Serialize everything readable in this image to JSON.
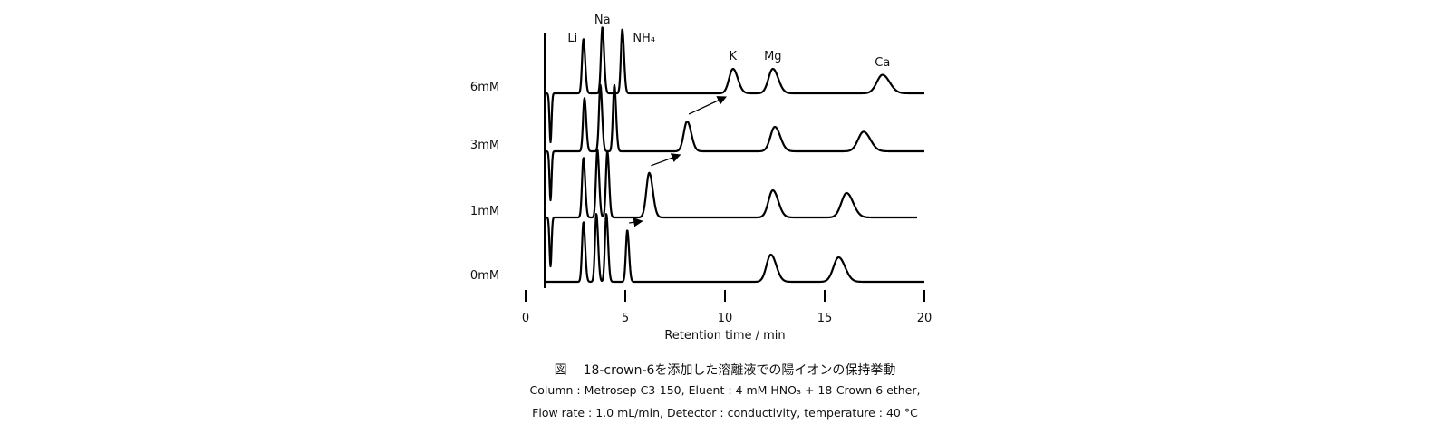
{
  "figure": {
    "caption_mark": "図",
    "caption_title": "18-crown-6を添加した溶離液での陽イオンの保持挙動",
    "conditions_line1": "Column : Metrosep C3-150, Eluent : 4 mM HNO₃ + 18-Crown 6 ether,",
    "conditions_line2": "Flow rate : 1.0 mL/min, Detector : conductivity, temperature : 40 °C"
  },
  "chart_data": {
    "type": "line",
    "title": "",
    "xlabel": "Retention time / min",
    "ylabel": "",
    "xlim": [
      0,
      20
    ],
    "xticks": [
      0,
      5,
      10,
      15,
      20
    ],
    "grid": false,
    "peak_labels": [
      "Li",
      "Na",
      "NH₄",
      "K",
      "Mg",
      "Ca"
    ],
    "series": [
      {
        "name": "6mM",
        "peaks": [
          {
            "ion": "Li",
            "rt": 2.9,
            "height": 1.0
          },
          {
            "ion": "Na",
            "rt": 3.85,
            "height": 1.22
          },
          {
            "ion": "NH₄",
            "rt": 4.85,
            "height": 1.18
          },
          {
            "ion": "K",
            "rt": 10.4,
            "height": 0.45
          },
          {
            "ion": "Mg",
            "rt": 12.4,
            "height": 0.45
          },
          {
            "ion": "Ca",
            "rt": 17.9,
            "height": 0.34
          }
        ]
      },
      {
        "name": "3mM",
        "peaks": [
          {
            "ion": "Li",
            "rt": 2.95,
            "height": 0.98
          },
          {
            "ion": "Na",
            "rt": 3.75,
            "height": 1.22
          },
          {
            "ion": "NH₄",
            "rt": 4.45,
            "height": 1.22
          },
          {
            "ion": "K",
            "rt": 8.1,
            "height": 0.55
          },
          {
            "ion": "Mg",
            "rt": 12.5,
            "height": 0.45
          },
          {
            "ion": "Ca",
            "rt": 16.95,
            "height": 0.36
          }
        ]
      },
      {
        "name": "1mM",
        "peaks": [
          {
            "ion": "Li",
            "rt": 2.9,
            "height": 1.1
          },
          {
            "ion": "Na",
            "rt": 3.6,
            "height": 1.25
          },
          {
            "ion": "NH₄",
            "rt": 4.1,
            "height": 1.22
          },
          {
            "ion": "K",
            "rt": 6.2,
            "height": 0.82
          },
          {
            "ion": "Mg",
            "rt": 12.4,
            "height": 0.5
          },
          {
            "ion": "Ca",
            "rt": 16.1,
            "height": 0.45
          }
        ]
      },
      {
        "name": "0mM",
        "peaks": [
          {
            "ion": "Li",
            "rt": 2.9,
            "height": 1.1
          },
          {
            "ion": "Na",
            "rt": 3.55,
            "height": 1.25
          },
          {
            "ion": "NH₄",
            "rt": 4.05,
            "height": 1.25
          },
          {
            "ion": "K",
            "rt": 5.1,
            "height": 0.95
          },
          {
            "ion": "Mg",
            "rt": 12.3,
            "height": 0.5
          },
          {
            "ion": "Ca",
            "rt": 15.7,
            "height": 0.45
          }
        ]
      }
    ]
  }
}
